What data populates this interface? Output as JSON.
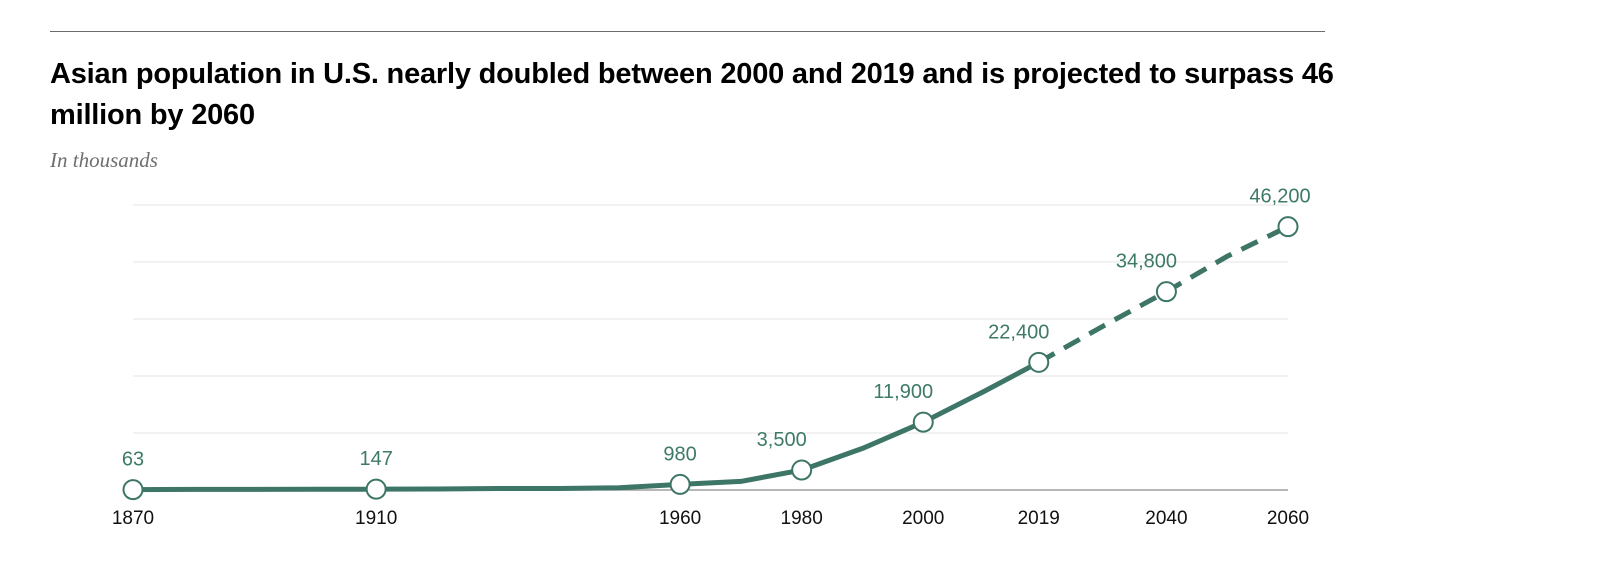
{
  "title": "Asian population in U.S. nearly doubled between 2000 and 2019 and is projected to surpass 46 million by 2060",
  "subtitle": "In thousands",
  "colors": {
    "line": "#3d7566",
    "label": "#3d7a67"
  },
  "chart_data": {
    "type": "line",
    "title": "Asian population in U.S. nearly doubled between 2000 and 2019 and is projected to surpass 46 million by 2060",
    "subtitle": "In thousands",
    "x_ticks": [
      1870,
      1910,
      1960,
      1980,
      2000,
      2019,
      2040,
      2060
    ],
    "ylim": [
      0,
      50000
    ],
    "grid": true,
    "series": [
      {
        "style": "solid",
        "x": [
          1870,
          1880,
          1890,
          1900,
          1910,
          1920,
          1930,
          1940,
          1950,
          1960,
          1970,
          1980,
          1990,
          2000,
          2010,
          2019
        ],
        "y": [
          63,
          105,
          110,
          115,
          147,
          180,
          264,
          255,
          400,
          980,
          1500,
          3500,
          7300,
          11900,
          17300,
          22400
        ]
      },
      {
        "style": "dashed",
        "x": [
          2019,
          2030,
          2040,
          2050,
          2060
        ],
        "y": [
          22400,
          29000,
          34800,
          41000,
          46200
        ]
      }
    ],
    "labeled_points": [
      {
        "x": 1870,
        "y": 63,
        "label": "63"
      },
      {
        "x": 1910,
        "y": 147,
        "label": "147"
      },
      {
        "x": 1960,
        "y": 980,
        "label": "980"
      },
      {
        "x": 1980,
        "y": 3500,
        "label": "3,500"
      },
      {
        "x": 2000,
        "y": 11900,
        "label": "11,900"
      },
      {
        "x": 2019,
        "y": 22400,
        "label": "22,400"
      },
      {
        "x": 2040,
        "y": 34800,
        "label": "34,800"
      },
      {
        "x": 2060,
        "y": 46200,
        "label": "46,200"
      }
    ]
  }
}
